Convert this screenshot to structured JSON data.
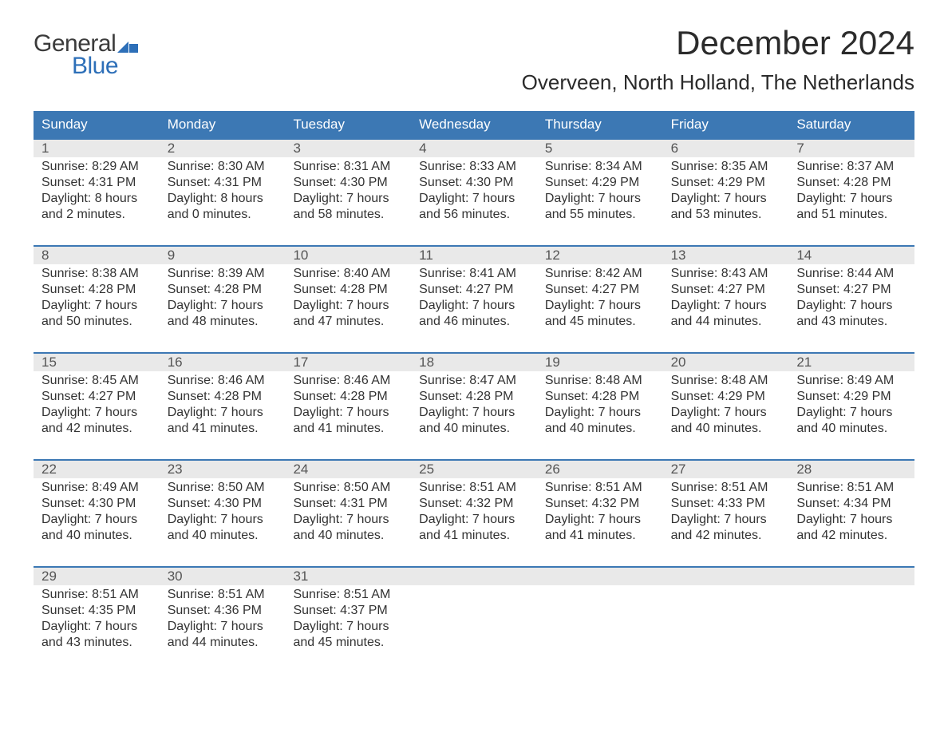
{
  "brand": {
    "word1": "General",
    "word2": "Blue",
    "text_color_dark": "#3b3b3b",
    "text_color_blue": "#2d6fb8",
    "flag_color": "#2d6fb8"
  },
  "header": {
    "month_title": "December 2024",
    "location": "Overveen, North Holland, The Netherlands",
    "title_color": "#2b2b2b",
    "title_fontsize_pt": 32,
    "location_fontsize_pt": 20
  },
  "styling": {
    "header_bg": "#3c78b4",
    "header_text_color": "#ffffff",
    "week_border_color": "#3c78b4",
    "daynum_bg": "#e9e9e9",
    "daynum_text_color": "#555555",
    "body_text_color": "#333333",
    "background": "#ffffff",
    "cell_fontsize_pt": 12,
    "header_fontsize_pt": 13
  },
  "columns": [
    "Sunday",
    "Monday",
    "Tuesday",
    "Wednesday",
    "Thursday",
    "Friday",
    "Saturday"
  ],
  "weeks": [
    [
      {
        "n": "1",
        "sr": "Sunrise: 8:29 AM",
        "ss": "Sunset: 4:31 PM",
        "dl": "Daylight: 8 hours and 2 minutes."
      },
      {
        "n": "2",
        "sr": "Sunrise: 8:30 AM",
        "ss": "Sunset: 4:31 PM",
        "dl": "Daylight: 8 hours and 0 minutes."
      },
      {
        "n": "3",
        "sr": "Sunrise: 8:31 AM",
        "ss": "Sunset: 4:30 PM",
        "dl": "Daylight: 7 hours and 58 minutes."
      },
      {
        "n": "4",
        "sr": "Sunrise: 8:33 AM",
        "ss": "Sunset: 4:30 PM",
        "dl": "Daylight: 7 hours and 56 minutes."
      },
      {
        "n": "5",
        "sr": "Sunrise: 8:34 AM",
        "ss": "Sunset: 4:29 PM",
        "dl": "Daylight: 7 hours and 55 minutes."
      },
      {
        "n": "6",
        "sr": "Sunrise: 8:35 AM",
        "ss": "Sunset: 4:29 PM",
        "dl": "Daylight: 7 hours and 53 minutes."
      },
      {
        "n": "7",
        "sr": "Sunrise: 8:37 AM",
        "ss": "Sunset: 4:28 PM",
        "dl": "Daylight: 7 hours and 51 minutes."
      }
    ],
    [
      {
        "n": "8",
        "sr": "Sunrise: 8:38 AM",
        "ss": "Sunset: 4:28 PM",
        "dl": "Daylight: 7 hours and 50 minutes."
      },
      {
        "n": "9",
        "sr": "Sunrise: 8:39 AM",
        "ss": "Sunset: 4:28 PM",
        "dl": "Daylight: 7 hours and 48 minutes."
      },
      {
        "n": "10",
        "sr": "Sunrise: 8:40 AM",
        "ss": "Sunset: 4:28 PM",
        "dl": "Daylight: 7 hours and 47 minutes."
      },
      {
        "n": "11",
        "sr": "Sunrise: 8:41 AM",
        "ss": "Sunset: 4:27 PM",
        "dl": "Daylight: 7 hours and 46 minutes."
      },
      {
        "n": "12",
        "sr": "Sunrise: 8:42 AM",
        "ss": "Sunset: 4:27 PM",
        "dl": "Daylight: 7 hours and 45 minutes."
      },
      {
        "n": "13",
        "sr": "Sunrise: 8:43 AM",
        "ss": "Sunset: 4:27 PM",
        "dl": "Daylight: 7 hours and 44 minutes."
      },
      {
        "n": "14",
        "sr": "Sunrise: 8:44 AM",
        "ss": "Sunset: 4:27 PM",
        "dl": "Daylight: 7 hours and 43 minutes."
      }
    ],
    [
      {
        "n": "15",
        "sr": "Sunrise: 8:45 AM",
        "ss": "Sunset: 4:27 PM",
        "dl": "Daylight: 7 hours and 42 minutes."
      },
      {
        "n": "16",
        "sr": "Sunrise: 8:46 AM",
        "ss": "Sunset: 4:28 PM",
        "dl": "Daylight: 7 hours and 41 minutes."
      },
      {
        "n": "17",
        "sr": "Sunrise: 8:46 AM",
        "ss": "Sunset: 4:28 PM",
        "dl": "Daylight: 7 hours and 41 minutes."
      },
      {
        "n": "18",
        "sr": "Sunrise: 8:47 AM",
        "ss": "Sunset: 4:28 PM",
        "dl": "Daylight: 7 hours and 40 minutes."
      },
      {
        "n": "19",
        "sr": "Sunrise: 8:48 AM",
        "ss": "Sunset: 4:28 PM",
        "dl": "Daylight: 7 hours and 40 minutes."
      },
      {
        "n": "20",
        "sr": "Sunrise: 8:48 AM",
        "ss": "Sunset: 4:29 PM",
        "dl": "Daylight: 7 hours and 40 minutes."
      },
      {
        "n": "21",
        "sr": "Sunrise: 8:49 AM",
        "ss": "Sunset: 4:29 PM",
        "dl": "Daylight: 7 hours and 40 minutes."
      }
    ],
    [
      {
        "n": "22",
        "sr": "Sunrise: 8:49 AM",
        "ss": "Sunset: 4:30 PM",
        "dl": "Daylight: 7 hours and 40 minutes."
      },
      {
        "n": "23",
        "sr": "Sunrise: 8:50 AM",
        "ss": "Sunset: 4:30 PM",
        "dl": "Daylight: 7 hours and 40 minutes."
      },
      {
        "n": "24",
        "sr": "Sunrise: 8:50 AM",
        "ss": "Sunset: 4:31 PM",
        "dl": "Daylight: 7 hours and 40 minutes."
      },
      {
        "n": "25",
        "sr": "Sunrise: 8:51 AM",
        "ss": "Sunset: 4:32 PM",
        "dl": "Daylight: 7 hours and 41 minutes."
      },
      {
        "n": "26",
        "sr": "Sunrise: 8:51 AM",
        "ss": "Sunset: 4:32 PM",
        "dl": "Daylight: 7 hours and 41 minutes."
      },
      {
        "n": "27",
        "sr": "Sunrise: 8:51 AM",
        "ss": "Sunset: 4:33 PM",
        "dl": "Daylight: 7 hours and 42 minutes."
      },
      {
        "n": "28",
        "sr": "Sunrise: 8:51 AM",
        "ss": "Sunset: 4:34 PM",
        "dl": "Daylight: 7 hours and 42 minutes."
      }
    ],
    [
      {
        "n": "29",
        "sr": "Sunrise: 8:51 AM",
        "ss": "Sunset: 4:35 PM",
        "dl": "Daylight: 7 hours and 43 minutes."
      },
      {
        "n": "30",
        "sr": "Sunrise: 8:51 AM",
        "ss": "Sunset: 4:36 PM",
        "dl": "Daylight: 7 hours and 44 minutes."
      },
      {
        "n": "31",
        "sr": "Sunrise: 8:51 AM",
        "ss": "Sunset: 4:37 PM",
        "dl": "Daylight: 7 hours and 45 minutes."
      },
      null,
      null,
      null,
      null
    ]
  ]
}
